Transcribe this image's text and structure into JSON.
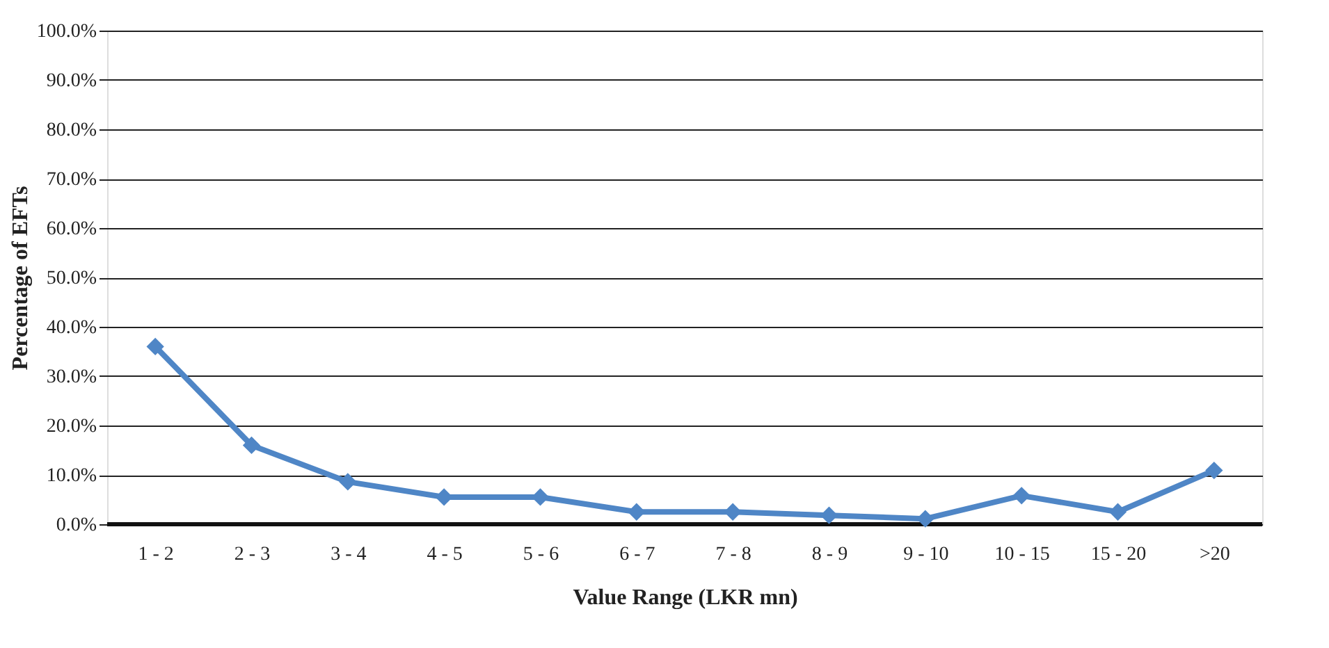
{
  "chart_data": {
    "type": "line",
    "xlabel": "Value Range (LKR mn)",
    "ylabel": "Percentage of EFTs",
    "categories": [
      "1 - 2",
      "2 - 3",
      "3 - 4",
      "4 - 5",
      "5 - 6",
      "6 - 7",
      "7 - 8",
      "8 - 9",
      "9 - 10",
      "10 - 15",
      "15 - 20",
      ">20"
    ],
    "series": [
      {
        "color": "#4f86c6",
        "values": [
          36.0,
          16.0,
          8.6,
          5.5,
          5.5,
          2.5,
          2.5,
          1.8,
          1.1,
          5.8,
          2.5,
          10.9
        ]
      }
    ],
    "ylim": [
      0,
      100
    ],
    "yticks": [
      {
        "value": 0,
        "label": "0.0%"
      },
      {
        "value": 10,
        "label": "10.0%"
      },
      {
        "value": 20,
        "label": "20.0%"
      },
      {
        "value": 30,
        "label": "30.0%"
      },
      {
        "value": 40,
        "label": "40.0%"
      },
      {
        "value": 50,
        "label": "50.0%"
      },
      {
        "value": 60,
        "label": "60.0%"
      },
      {
        "value": 70,
        "label": "70.0%"
      },
      {
        "value": 80,
        "label": "80.0%"
      },
      {
        "value": 90,
        "label": "90.0%"
      },
      {
        "value": 100,
        "label": "100.0%"
      }
    ],
    "grid": "y",
    "marker": "diamond",
    "line_style": "solid",
    "legend": false
  }
}
